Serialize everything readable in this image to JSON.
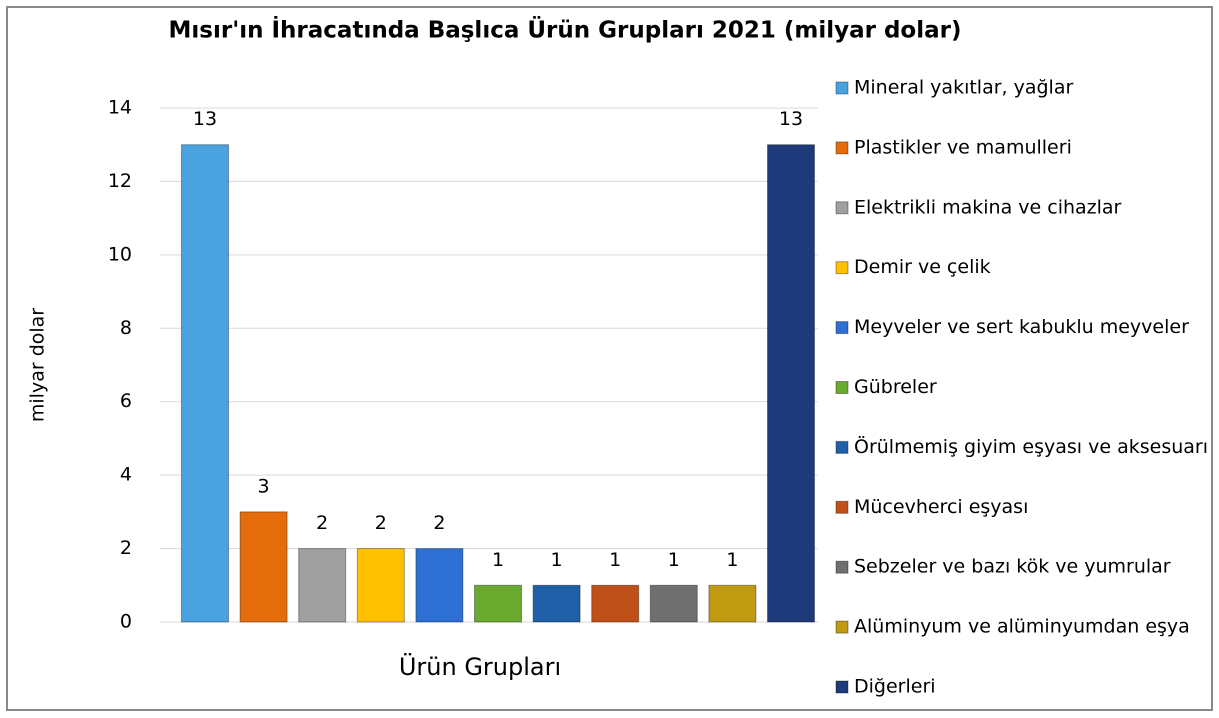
{
  "chart_data": {
    "type": "bar",
    "title": "Mısır'ın İhracatında Başlıca Ürün Grupları 2021 (milyar dolar)",
    "xlabel": "Ürün Grupları",
    "ylabel": "milyar dolar",
    "ylim": [
      0,
      14
    ],
    "yticks": [
      0,
      2,
      4,
      6,
      8,
      10,
      12,
      14
    ],
    "grid": true,
    "legend": "right",
    "series": [
      {
        "name": "Mineral yakıtlar, yağlar",
        "color": "#4aa3e0",
        "values": [
          13
        ]
      },
      {
        "name": "Plastikler ve mamulleri",
        "color": "#e46c0a",
        "values": [
          3
        ]
      },
      {
        "name": "Elektrikli makina ve cihazlar",
        "color": "#a0a0a0",
        "values": [
          2
        ]
      },
      {
        "name": "Demir ve çelik",
        "color": "#ffc000",
        "values": [
          2
        ]
      },
      {
        "name": "Meyveler ve sert kabuklu meyveler",
        "color": "#2e6fd4",
        "values": [
          2
        ]
      },
      {
        "name": "Gübreler",
        "color": "#6aaa2e",
        "values": [
          1
        ]
      },
      {
        "name": "Örülmemiş giyim eşyası ve aksesuarı",
        "color": "#1f5fa8",
        "values": [
          1
        ]
      },
      {
        "name": "Mücevherci eşyası",
        "color": "#c0501a",
        "values": [
          1
        ]
      },
      {
        "name": "Sebzeler ve bazı kök ve yumrular",
        "color": "#707070",
        "values": [
          1
        ]
      },
      {
        "name": "Alüminyum ve alüminyumdan eşya",
        "color": "#c09a10",
        "values": [
          1
        ]
      },
      {
        "name": "Diğerleri",
        "color": "#1f3a7a",
        "values": [
          13
        ]
      }
    ]
  }
}
